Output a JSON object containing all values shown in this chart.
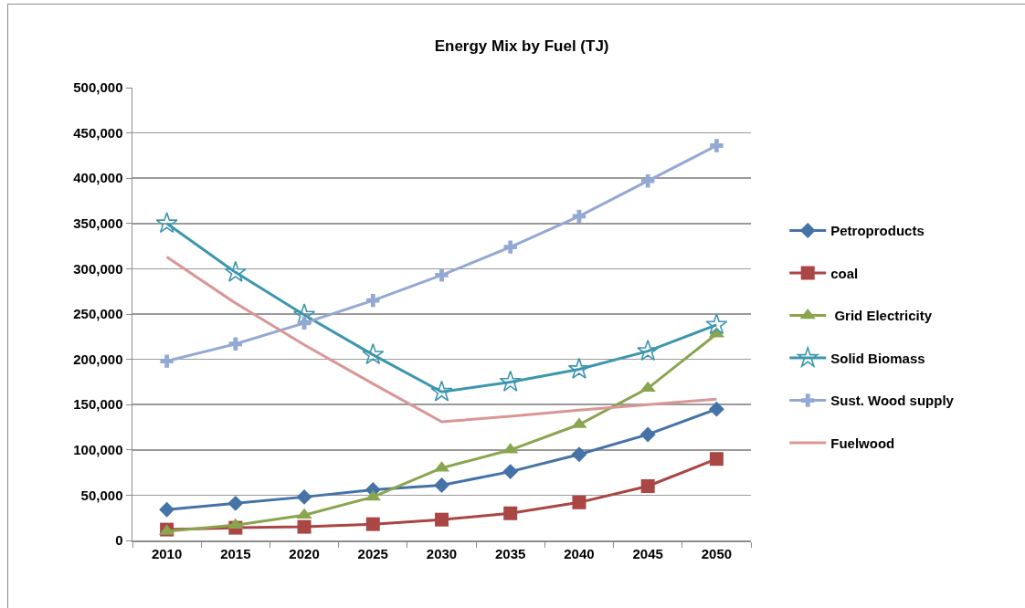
{
  "chart_data": {
    "type": "line",
    "title": "Energy Mix by Fuel (TJ)",
    "categories": [
      "2010",
      "2015",
      "2020",
      "2025",
      "2030",
      "2035",
      "2040",
      "2045",
      "2050"
    ],
    "series": [
      {
        "name": "Petroproducts",
        "color": "#4572a7",
        "marker": "diamond",
        "values": [
          34000,
          41000,
          48000,
          56000,
          61000,
          76000,
          95000,
          117000,
          145000
        ]
      },
      {
        "name": "coal",
        "color": "#aa4643",
        "marker": "square",
        "values": [
          12000,
          14000,
          15000,
          18000,
          23000,
          30000,
          42000,
          60000,
          90000
        ]
      },
      {
        "name": " Grid Electricity",
        "color": "#89a54e",
        "marker": "triangle",
        "values": [
          10000,
          17000,
          28000,
          48000,
          80000,
          100000,
          128000,
          168000,
          228000
        ]
      },
      {
        "name": "Solid Biomass",
        "color": "#3d96ae",
        "marker": "star",
        "values": [
          350000,
          296000,
          249000,
          205000,
          164000,
          175000,
          189000,
          209000,
          238000
        ]
      },
      {
        "name": "Sust. Wood supply",
        "color": "#93a9d4",
        "marker": "cross",
        "values": [
          198000,
          217000,
          240000,
          265000,
          293000,
          324000,
          358000,
          397000,
          436000
        ]
      },
      {
        "name": "Fuelwood",
        "color": "#d99694",
        "marker": "none",
        "values": [
          313000,
          262000,
          216000,
          173000,
          131000,
          137000,
          144000,
          150000,
          156000
        ]
      }
    ],
    "ylim": [
      0,
      500000
    ],
    "yticks": [
      {
        "value": 0,
        "label": "0"
      },
      {
        "value": 50000,
        "label": "50,000"
      },
      {
        "value": 100000,
        "label": "100,000"
      },
      {
        "value": 150000,
        "label": "150,000"
      },
      {
        "value": 200000,
        "label": "200,000"
      },
      {
        "value": 250000,
        "label": "250,000"
      },
      {
        "value": 300000,
        "label": "300,000"
      },
      {
        "value": 350000,
        "label": "350,000"
      },
      {
        "value": 400000,
        "label": "400,000"
      },
      {
        "value": 450000,
        "label": "450,000"
      },
      {
        "value": 500000,
        "label": "500,000"
      }
    ],
    "grid": "y",
    "legend": "right"
  }
}
